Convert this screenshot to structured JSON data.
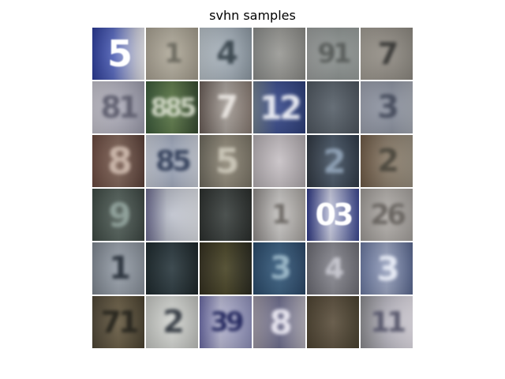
{
  "title": "svhn samples",
  "grid": {
    "rows": 6,
    "cols": 6
  },
  "tiles": [
    {
      "bg": "linear-gradient(90deg,#2d3d9a,#5566bb 40%,#c9cbdc 85%,#e8e8ee)",
      "digits": "5",
      "ink": "#ffffff",
      "size": 46,
      "sharp": true
    },
    {
      "bg": "linear-gradient(90deg,#a8a192,#b3ad9e 50%,#a49d8d)",
      "digits": "1",
      "ink": "#6c6a60",
      "size": 34
    },
    {
      "bg": "linear-gradient(90deg,#b8c1c8,#a4afb9 60%,#8e9aa4)",
      "digits": "4",
      "ink": "#3e4a52",
      "size": 40
    },
    {
      "bg": "linear-gradient(90deg,#8a8c8a,#9a9a96 50%,#8a8a86)",
      "digits": "",
      "ink": "#777",
      "size": 30
    },
    {
      "bg": "linear-gradient(90deg,#9b9e9d,#8e9492 60%,#9aa09e)",
      "digits": "91",
      "ink": "#5a5e5c",
      "size": 34
    },
    {
      "bg": "linear-gradient(90deg,#a29d94,#948f87 50%,#8e8a82)",
      "digits": "7",
      "ink": "#3c3c3a",
      "size": 38
    },
    {
      "bg": "linear-gradient(90deg,#c4c2cc,#aeadba 55%,#9c9cac)",
      "digits": "81",
      "ink": "#606070",
      "size": 38
    },
    {
      "bg": "linear-gradient(90deg,#3b5a3a,#5e7a4a 50%,#354a30)",
      "digits": "885",
      "ink": "#cfd6c4",
      "size": 32
    },
    {
      "bg": "linear-gradient(90deg,#6a5e58,#a7a09a 50%,#877a72)",
      "digits": "7",
      "ink": "#e8e4e0",
      "size": 40
    },
    {
      "bg": "linear-gradient(90deg,#6f7d8c,#3a4c8c 45%,#2e3f7a)",
      "digits": "12",
      "ink": "#e6e8f0",
      "size": 42
    },
    {
      "bg": "linear-gradient(90deg,#4f5760,#5a636c 50%,#4d555e)",
      "digits": "",
      "ink": "#666",
      "size": 30
    },
    {
      "bg": "linear-gradient(90deg,#9ba0ad,#8c92a0 60%,#a6abb5)",
      "digits": "3",
      "ink": "#4a5060",
      "size": 40
    },
    {
      "bg": "linear-gradient(90deg,#6a4a40,#7f6458 50%,#5a4038)",
      "digits": "8",
      "ink": "#c8b4a8",
      "size": 46
    },
    {
      "bg": "linear-gradient(90deg,#c5cad5,#9fa8bb 50%,#c9ced8)",
      "digits": "85",
      "ink": "#3a4660",
      "size": 36
    },
    {
      "bg": "linear-gradient(90deg,#6e6a5e,#918a7a 50%,#7a7466)",
      "digits": "5",
      "ink": "#c8c4b6",
      "size": 44
    },
    {
      "bg": "linear-gradient(90deg,#b4aeb2,#c8c2c6 50%,#b0aaae)",
      "digits": "",
      "ink": "#999",
      "size": 30
    },
    {
      "bg": "linear-gradient(90deg,#303842,#4a5868 50%,#2f3a48)",
      "digits": "2",
      "ink": "#8ea0b4",
      "size": 42
    },
    {
      "bg": "linear-gradient(90deg,#6e5a46,#8a7c6a 50%,#9a9080)",
      "digits": "2",
      "ink": "#4e4a40",
      "size": 40
    },
    {
      "bg": "linear-gradient(90deg,#3e4a44,#55625c 50%,#3c4642)",
      "digits": "9",
      "ink": "#8fa09a",
      "size": 42
    },
    {
      "bg": "linear-gradient(90deg,#6c6c90,#b8bcc8 40%,#dde0e6)",
      "digits": "",
      "ink": "#aaa",
      "size": 30
    },
    {
      "bg": "linear-gradient(90deg,#2c302e,#3e4442 50%,#2a2e2c)",
      "digits": "",
      "ink": "#444",
      "size": 30
    },
    {
      "bg": "linear-gradient(90deg,#8e8a88,#c8c6c4 50%,#a8a4a0)",
      "digits": "1",
      "ink": "#6e6a66",
      "size": 34
    },
    {
      "bg": "linear-gradient(90deg,#2e3884,#c8cbe0 45%,#3c4890)",
      "digits": "03",
      "ink": "#ffffff",
      "size": 38,
      "sharp": true
    },
    {
      "bg": "linear-gradient(90deg,#9e9a96,#b4b0ac 50%,#a6a29e)",
      "digits": "26",
      "ink": "#6a6662",
      "size": 36
    },
    {
      "bg": "linear-gradient(90deg,#7e8690,#9aa2ac 50%,#88909a)",
      "digits": "1",
      "ink": "#2e3640",
      "size": 40
    },
    {
      "bg": "linear-gradient(90deg,#1e2a2e,#2e3c42 50%,#1c2629)",
      "digits": "",
      "ink": "#333",
      "size": 30
    },
    {
      "bg": "linear-gradient(90deg,#343020,#4a4628 50%,#2a2a20)",
      "digits": "",
      "ink": "#333",
      "size": 30
    },
    {
      "bg": "linear-gradient(90deg,#2a4a6a,#3a5f80 50%,#2c4868)",
      "digits": "3",
      "ink": "#9ab6c6",
      "size": 40
    },
    {
      "bg": "linear-gradient(90deg,#6a6a72,#8a8a92 50%,#6e6e76)",
      "digits": "4",
      "ink": "#c6c6ce",
      "size": 36
    },
    {
      "bg": "linear-gradient(90deg,#6a78a0,#9aa4c0 50%,#5a6890)",
      "digits": "3",
      "ink": "#e6eaf4",
      "size": 42
    },
    {
      "bg": "linear-gradient(90deg,#4e4636,#6a5e46 50%,#4a4230)",
      "digits": "71",
      "ink": "#2a2820",
      "size": 38
    },
    {
      "bg": "linear-gradient(90deg,#c4c6c2,#d6d8d4 50%,#c0c2be)",
      "digits": "2",
      "ink": "#3a4048",
      "size": 40
    },
    {
      "bg": "linear-gradient(90deg,#6a6aa4,#b8b8d2 40%,#8e90ba)",
      "digits": "39",
      "ink": "#262a60",
      "size": 34
    },
    {
      "bg": "linear-gradient(90deg,#a09aa6,#6a6a8a 50%,#b6b2bc)",
      "digits": "8",
      "ink": "#e6e4ee",
      "size": 42
    },
    {
      "bg": "linear-gradient(90deg,#4e4432,#5e5240 50%,#4a4230)",
      "digits": "",
      "ink": "#444",
      "size": 30
    },
    {
      "bg": "linear-gradient(90deg,#8a8a8e,#b8b6c0 50%,#e6e2ea)",
      "digits": "11",
      "ink": "#5a5a6e",
      "size": 36
    }
  ]
}
